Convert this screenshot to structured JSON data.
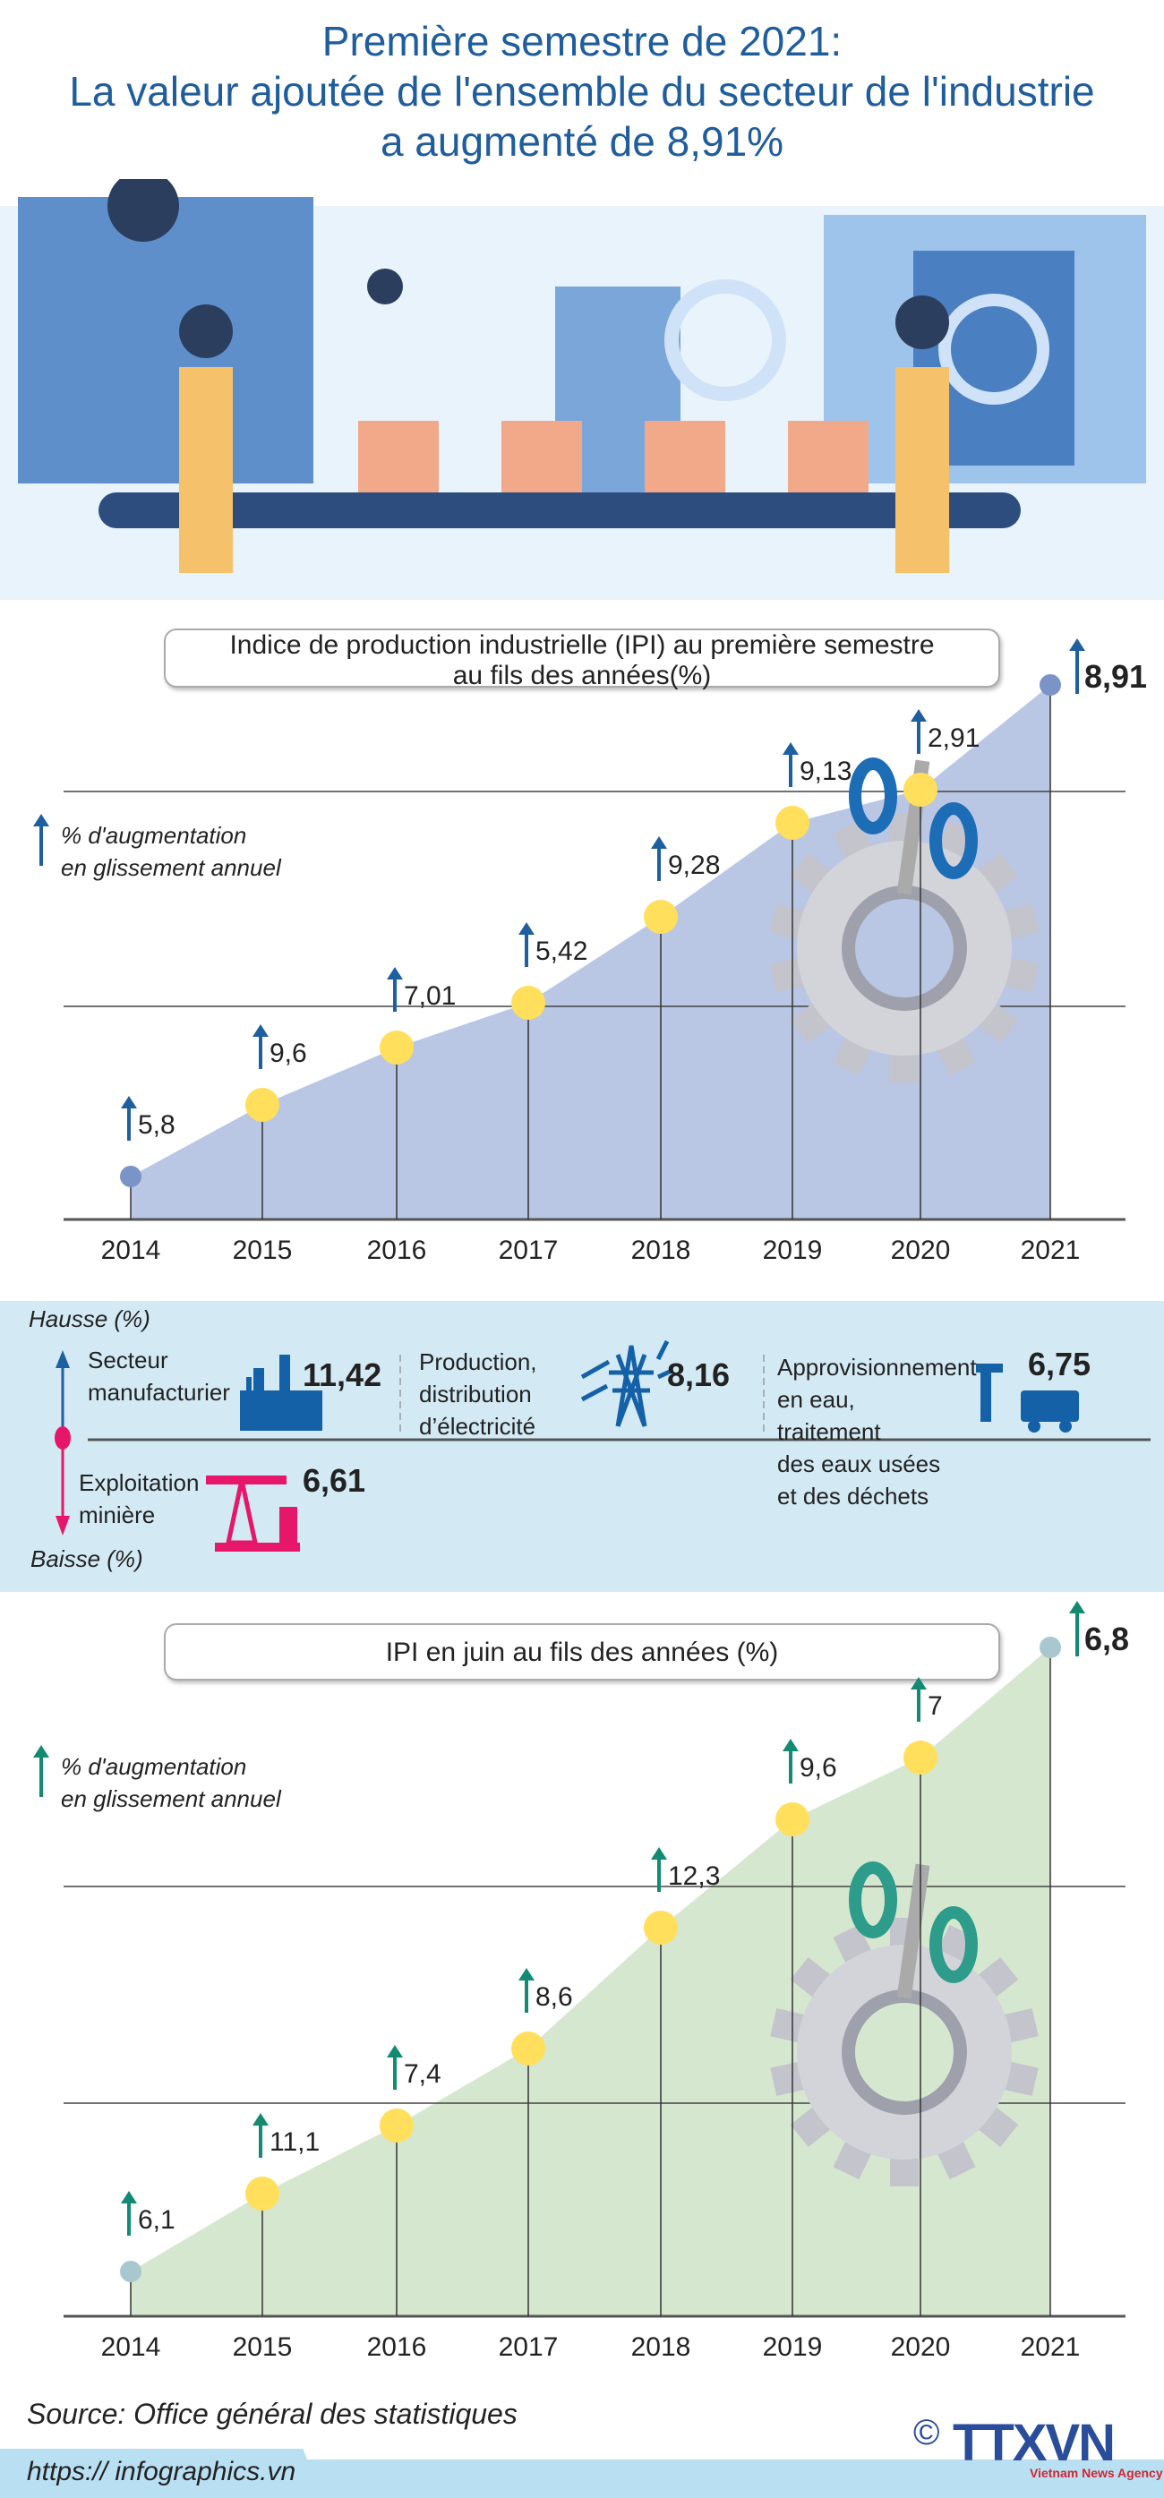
{
  "title": [
    "Première semestre de 2021:",
    "La valeur ajoutée de l'ensemble du secteur de l'industrie",
    "a augmenté de 8,91%"
  ],
  "colors": {
    "title": "#1f5d9c",
    "arrow_blue": "#1f5fa0",
    "arrow_green": "#138a72",
    "area_blue": "#b9c6e4",
    "area_green": "#d6e7d0",
    "dot": "#ffdf5c",
    "band": "#d3eaf5",
    "pink": "#e6176b"
  },
  "chart_data": [
    {
      "type": "area",
      "title": "Indice de production industrielle (IPI) au première semestre au fils des années(%)",
      "title_lines": [
        "Indice de production industrielle (IPI) au première semestre",
        "au fils des années(%)"
      ],
      "legend": [
        "% d'augmentation",
        "en glissement annuel"
      ],
      "categories": [
        "2014",
        "2015",
        "2016",
        "2017",
        "2018",
        "2019",
        "2020",
        "2021"
      ],
      "values": [
        5.8,
        9.6,
        7.01,
        5.42,
        9.28,
        9.13,
        2.91,
        8.91
      ],
      "labels": [
        "5,8",
        "9,6",
        "7,01",
        "5,42",
        "9,28",
        "9,13",
        "2,91",
        "8,91"
      ],
      "grid": true
    },
    {
      "type": "area",
      "title": "IPI en juin au fils des années (%)",
      "title_lines": [
        "IPI en juin au fils des années (%)"
      ],
      "legend": [
        "% d'augmentation",
        "en glissement annuel"
      ],
      "categories": [
        "2014",
        "2015",
        "2016",
        "2017",
        "2018",
        "2019",
        "2020",
        "2021"
      ],
      "values": [
        6.1,
        11.1,
        7.4,
        8.6,
        12.3,
        9.6,
        7,
        6.8
      ],
      "labels": [
        "6,1",
        "11,1",
        "7,4",
        "8,6",
        "12,3",
        "9,6",
        "7",
        "6,8"
      ],
      "grid": true
    }
  ],
  "sectors": {
    "up_label": "Hausse (%)",
    "down_label": "Baisse (%)",
    "items": [
      {
        "name": "Secteur manufacturier",
        "lines": [
          "Secteur",
          "manufacturier"
        ],
        "value": "11,42",
        "icon": "factory-icon"
      },
      {
        "name": "Production, distribution d'électricité",
        "lines": [
          "Production,",
          "distribution",
          "d’électricité"
        ],
        "value": "8,16",
        "icon": "power-tower-icon"
      },
      {
        "name": "Approvisionnement en eau",
        "lines": [
          "Approvisionnement",
          "en eau,",
          "traitement",
          "des eaux usées",
          "et des déchets"
        ],
        "value": "6,75",
        "icon": "water-tap-truck-icon"
      },
      {
        "name": "Exploitation minière",
        "lines": [
          "Exploitation",
          "minière"
        ],
        "value": "6,61",
        "icon": "oil-pump-icon"
      }
    ]
  },
  "footer": {
    "source": "Source: Office général des statistiques",
    "url": "https:// infographics.vn",
    "logo": "TTXVN",
    "logo_sub": "Vietnam News Agency",
    "copyright": "©"
  }
}
